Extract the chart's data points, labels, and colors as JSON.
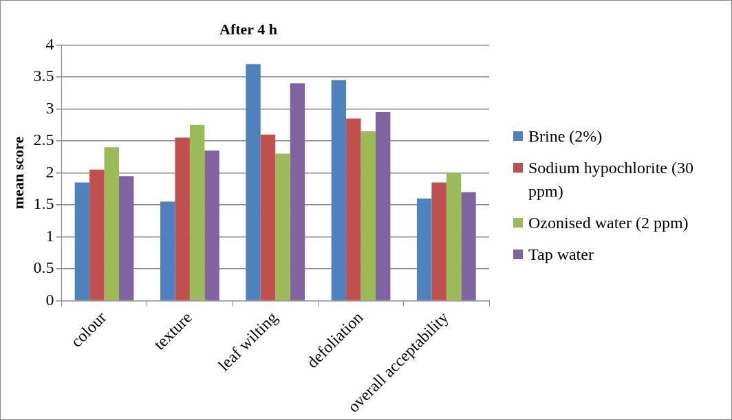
{
  "chart_data": {
    "type": "bar",
    "title": "After 4 h",
    "ylabel": "mean score",
    "categories": [
      "colour",
      "texture",
      "leaf wilting",
      "defoliation",
      "overall acceptability"
    ],
    "series": [
      {
        "name": "Brine (2%)",
        "color": "#4f81bd",
        "values": [
          1.85,
          1.55,
          3.7,
          3.45,
          1.6
        ]
      },
      {
        "name": "Sodium hypochlorite (30 ppm)",
        "color": "#c0504d",
        "values": [
          2.05,
          2.55,
          2.6,
          2.85,
          1.85
        ]
      },
      {
        "name": "Ozonised water (2 ppm)",
        "color": "#9bbb59",
        "values": [
          2.4,
          2.75,
          2.3,
          2.65,
          2.0
        ]
      },
      {
        "name": "Tap water",
        "color": "#8064a2",
        "values": [
          1.95,
          2.35,
          3.4,
          2.95,
          1.7
        ]
      }
    ],
    "ylim": [
      0,
      4
    ],
    "yticks": [
      0,
      0.5,
      1,
      1.5,
      2,
      2.5,
      3,
      3.5,
      4
    ],
    "grid": "y",
    "legend": "right"
  }
}
